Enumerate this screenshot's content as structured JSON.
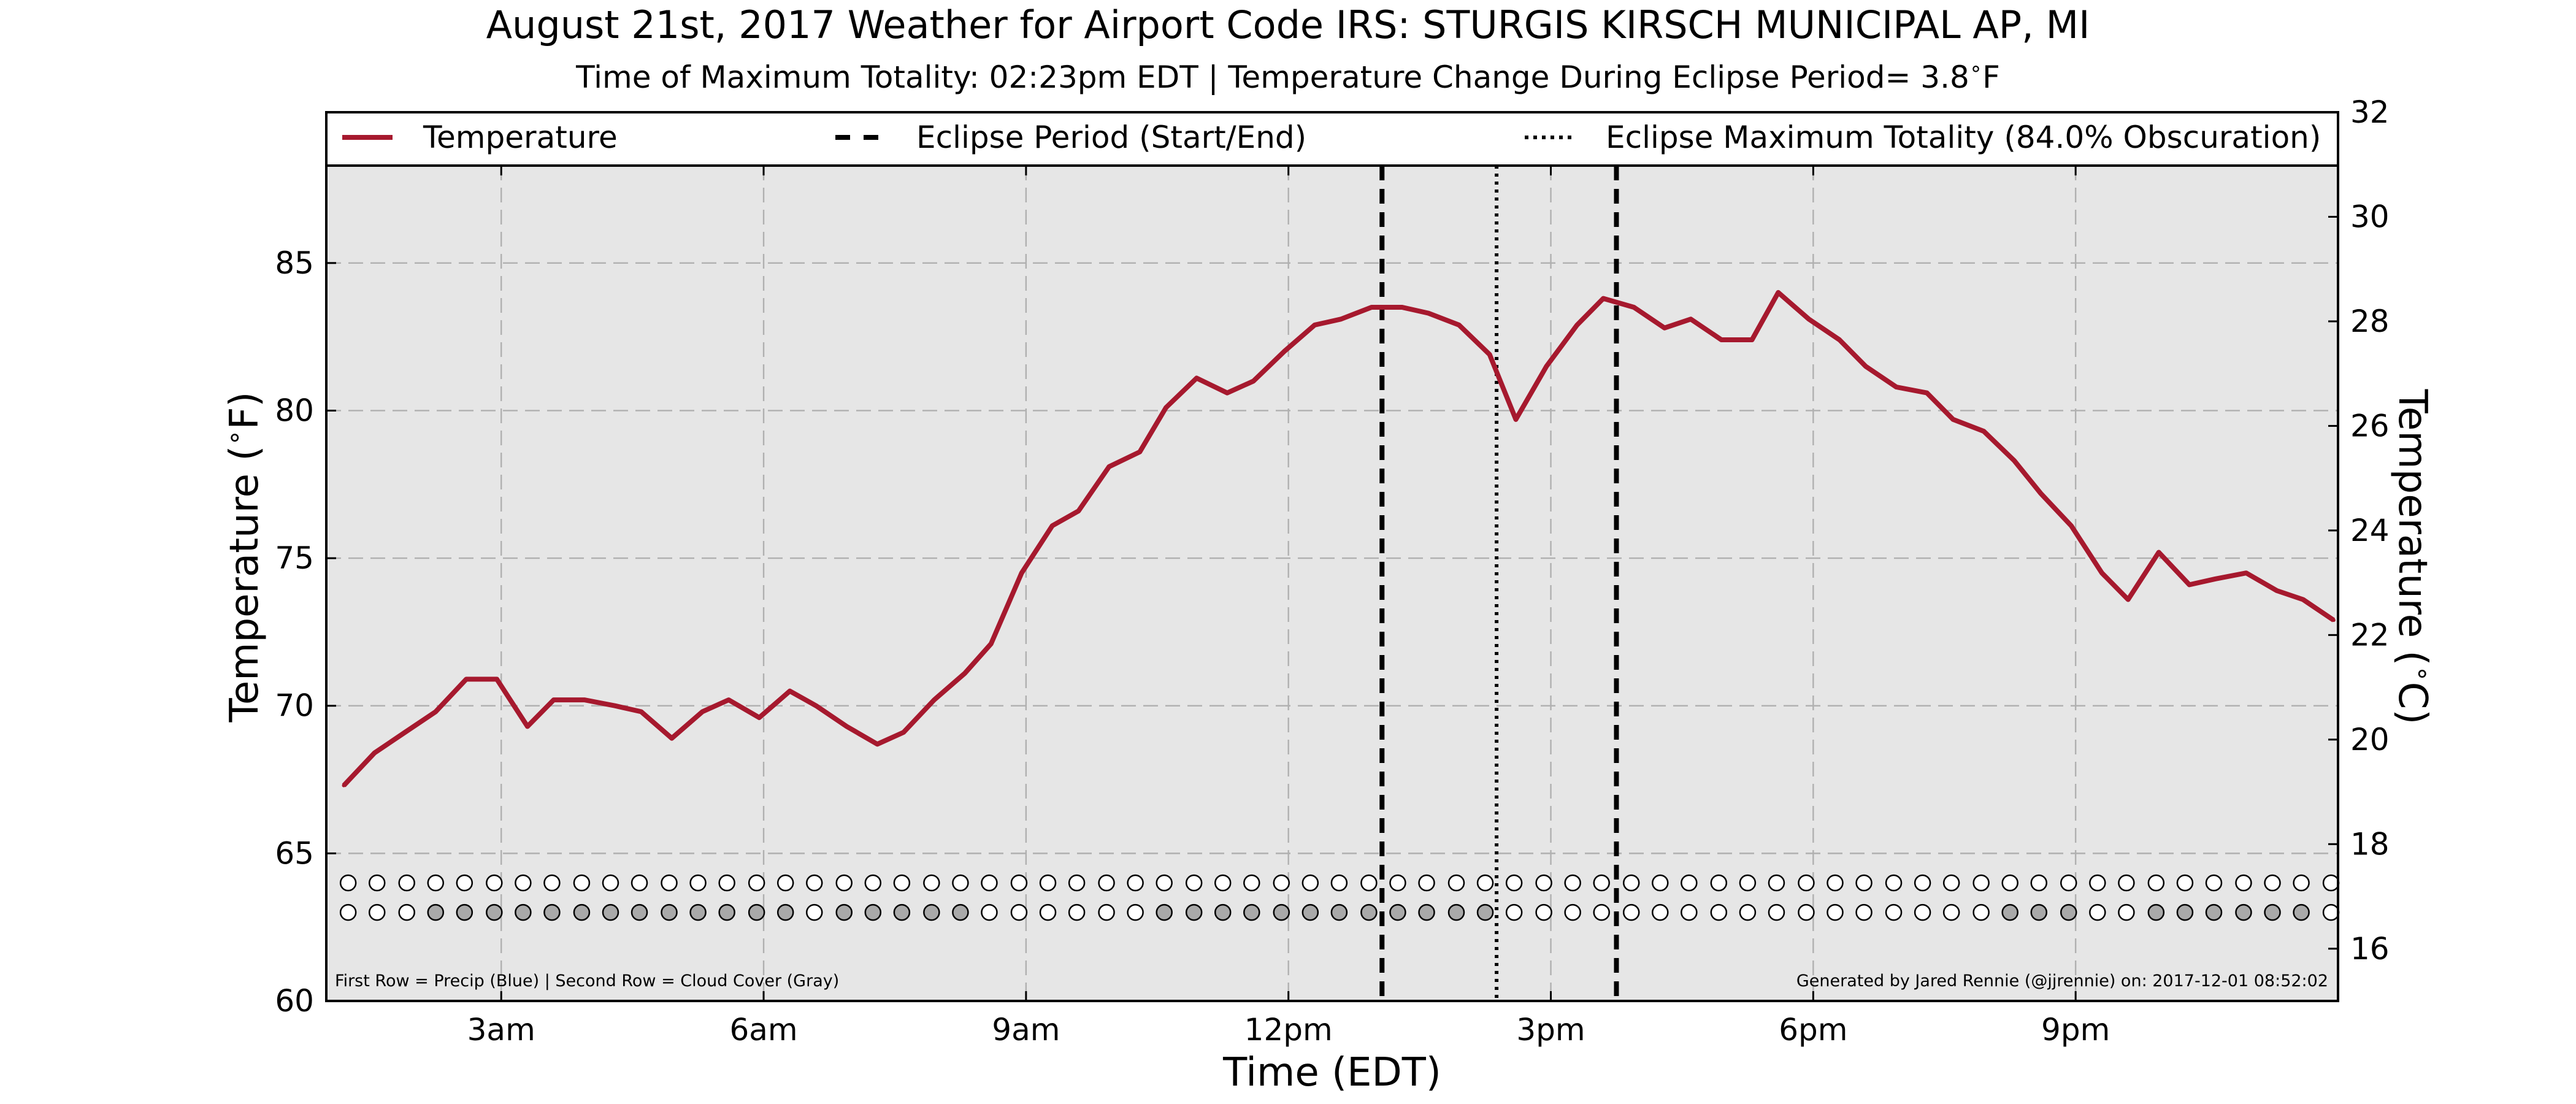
{
  "chart_data": {
    "type": "line",
    "title": "August 21st, 2017 Weather for Airport Code IRS: STURGIS KIRSCH MUNICIPAL AP, MI",
    "subtitle": "Time of Maximum Totality: 02:23pm EDT | Temperature Change During Eclipse Period= 3.8$^\\circ$F",
    "subtitle_parts": {
      "before": "Time of Maximum Totality: 02:23pm EDT | Temperature Change During Eclipse Period= 3.8",
      "sup": "∘",
      "after": "F"
    },
    "xlabel": "Time (EDT)",
    "ylabel_parts": {
      "before": "Temperature (",
      "sup": "∘",
      "after": "F)"
    },
    "ylabel_right_parts": {
      "before": "Temperature (",
      "sup": "∘",
      "after": "C)"
    },
    "x_unit": "hours since midnight EDT",
    "xlim": [
      1.0,
      24.0
    ],
    "xticks": [
      {
        "value": 3,
        "label": "3am"
      },
      {
        "value": 6,
        "label": "6am"
      },
      {
        "value": 9,
        "label": "9am"
      },
      {
        "value": 12,
        "label": "12pm"
      },
      {
        "value": 15,
        "label": "3pm"
      },
      {
        "value": 18,
        "label": "6pm"
      },
      {
        "value": 21,
        "label": "9pm"
      }
    ],
    "ylim": [
      60,
      88.3
    ],
    "yticks": [
      60,
      65,
      70,
      75,
      80,
      85
    ],
    "ylim_right": [
      15,
      32
    ],
    "yticks_right": [
      16,
      18,
      20,
      22,
      24,
      26,
      28,
      30,
      32
    ],
    "grid": true,
    "background": "#e6e6e6",
    "legend_position": "top",
    "legend": [
      {
        "label": "Temperature",
        "style": "solid",
        "color": "#a6192e"
      },
      {
        "label": "Eclipse Period (Start/End)",
        "style": "dashed",
        "color": "#000000"
      },
      {
        "label": "Eclipse Maximum Totality (84.0% Obscuration)",
        "style": "dotted",
        "color": "#000000"
      }
    ],
    "series": [
      {
        "name": "Temperature",
        "color": "#a6192e",
        "x": [
          1.2,
          1.55,
          1.9,
          2.25,
          2.6,
          2.95,
          3.3,
          3.6,
          3.95,
          4.3,
          4.6,
          4.95,
          5.3,
          5.6,
          5.95,
          6.3,
          6.6,
          6.95,
          7.3,
          7.6,
          7.95,
          8.3,
          8.6,
          8.95,
          9.3,
          9.6,
          9.95,
          10.3,
          10.6,
          10.95,
          11.3,
          11.6,
          11.95,
          12.3,
          12.6,
          12.95,
          13.3,
          13.6,
          13.95,
          14.3,
          14.6,
          14.95,
          15.3,
          15.6,
          15.95,
          16.3,
          16.6,
          16.95,
          17.3,
          17.6,
          17.95,
          18.3,
          18.6,
          18.95,
          19.3,
          19.6,
          19.95,
          20.3,
          20.6,
          20.95,
          21.3,
          21.6,
          21.95,
          22.3,
          22.6,
          22.95,
          23.3,
          23.6,
          23.95
        ],
        "y": [
          67.3,
          68.4,
          69.1,
          69.8,
          70.9,
          70.9,
          69.3,
          70.2,
          70.2,
          70.0,
          69.8,
          68.9,
          69.8,
          70.2,
          69.6,
          70.5,
          70.0,
          69.3,
          68.7,
          69.1,
          70.2,
          71.1,
          72.1,
          74.5,
          76.1,
          76.6,
          78.1,
          78.6,
          80.1,
          81.1,
          80.6,
          81.0,
          82.0,
          82.9,
          83.1,
          83.5,
          83.5,
          83.3,
          82.9,
          81.9,
          79.7,
          81.5,
          82.9,
          83.8,
          83.5,
          82.8,
          83.1,
          82.4,
          82.4,
          84.0,
          83.1,
          82.4,
          81.5,
          80.8,
          80.6,
          79.7,
          79.3,
          78.3,
          77.2,
          76.1,
          74.5,
          73.6,
          75.2,
          74.1,
          74.3,
          74.5,
          73.9,
          73.6,
          72.9
        ]
      }
    ],
    "eclipse_start": 13.07,
    "eclipse_end": 15.75,
    "eclipse_max": 14.38,
    "marker_rows": {
      "row1_y": 64.0,
      "row2_y": 63.0,
      "x": [
        1.25,
        1.58,
        1.92,
        2.25,
        2.58,
        2.92,
        3.25,
        3.58,
        3.92,
        4.25,
        4.58,
        4.92,
        5.25,
        5.58,
        5.92,
        6.25,
        6.58,
        6.92,
        7.25,
        7.58,
        7.92,
        8.25,
        8.58,
        8.92,
        9.25,
        9.58,
        9.92,
        10.25,
        10.58,
        10.92,
        11.25,
        11.58,
        11.92,
        12.25,
        12.58,
        12.92,
        13.25,
        13.58,
        13.92,
        14.25,
        14.58,
        14.92,
        15.25,
        15.58,
        15.92,
        16.25,
        16.58,
        16.92,
        17.25,
        17.58,
        17.92,
        18.25,
        18.58,
        18.92,
        19.25,
        19.58,
        19.92,
        20.25,
        20.58,
        20.92,
        21.25,
        21.58,
        21.92,
        22.25,
        22.58,
        22.92,
        23.25,
        23.58,
        23.92
      ],
      "precip": [
        0,
        0,
        0,
        0,
        0,
        0,
        0,
        0,
        0,
        0,
        0,
        0,
        0,
        0,
        0,
        0,
        0,
        0,
        0,
        0,
        0,
        0,
        0,
        0,
        0,
        0,
        0,
        0,
        0,
        0,
        0,
        0,
        0,
        0,
        0,
        0,
        0,
        0,
        0,
        0,
        0,
        0,
        0,
        0,
        0,
        0,
        0,
        0,
        0,
        0,
        0,
        0,
        0,
        0,
        0,
        0,
        0,
        0,
        0,
        0,
        0,
        0,
        0,
        0,
        0,
        0,
        0,
        0,
        0
      ],
      "cloud": [
        0,
        0,
        0,
        1,
        1,
        1,
        1,
        1,
        1,
        1,
        1,
        1,
        1,
        1,
        1,
        1,
        0,
        1,
        1,
        1,
        1,
        1,
        0,
        0,
        0,
        0,
        0,
        0,
        1,
        1,
        1,
        1,
        1,
        1,
        1,
        1,
        1,
        1,
        1,
        1,
        0,
        0,
        0,
        0,
        0,
        0,
        0,
        0,
        0,
        0,
        0,
        0,
        0,
        0,
        0,
        0,
        0,
        1,
        1,
        1,
        0,
        0,
        1,
        1,
        1,
        1,
        1,
        1,
        0
      ],
      "empty_fill": "#ffffff",
      "cloud_fill": "#a9a9a9",
      "precip_fill": "#1f5fbf"
    },
    "footnote_left": "First Row = Precip (Blue) | Second Row = Cloud Cover (Gray)",
    "footnote_right": "Generated by Jared Rennie (@jjrennie) on: 2017-12-01 08:52:02"
  }
}
